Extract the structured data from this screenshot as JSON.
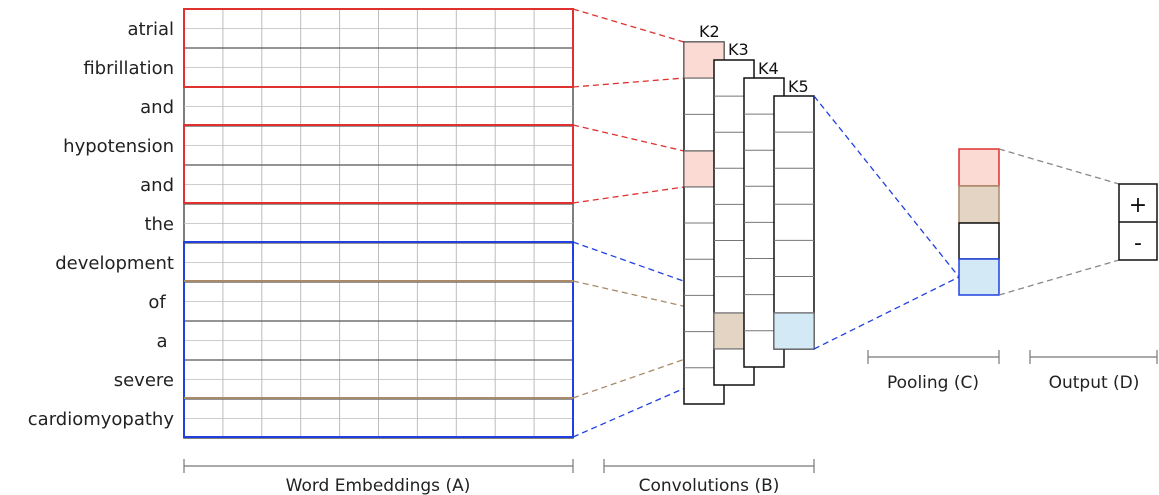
{
  "words": [
    "atrial",
    "fibrillation",
    "and",
    "hypotension",
    "and",
    "the",
    "development",
    "of",
    "a",
    "severe",
    "cardiomyopathy"
  ],
  "kernels": [
    "K2",
    "K3",
    "K4",
    "K5"
  ],
  "output": {
    "plus": "+",
    "minus": "-"
  },
  "section_labels": {
    "embeddings": "Word Embeddings (A)",
    "convolutions": "Convolutions (B)",
    "pooling": "Pooling (C)",
    "output": "Output (D)"
  },
  "colors": {
    "red": "#e03030",
    "blue": "#2040e0",
    "brown": "#a88a6a",
    "red_fill": "#fbdad4",
    "brown_fill": "#e3d4c4",
    "blue_fill": "#d3eaf6",
    "grid": "#bdbdbd"
  }
}
